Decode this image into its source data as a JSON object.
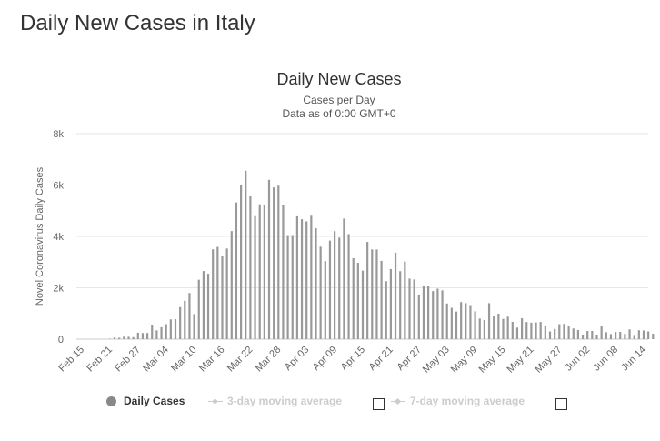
{
  "page": {
    "heading": "Daily New Cases in Italy"
  },
  "chart_data": {
    "type": "bar",
    "title": "Daily New Cases",
    "subtitle_line1": "Cases per Day",
    "subtitle_line2": "Data as of 0:00 GMT+0",
    "ylabel": "Novel Coronavirus Daily Cases",
    "xlabel": "",
    "ylim": [
      0,
      8000
    ],
    "yticks": [
      0,
      2000,
      4000,
      6000,
      8000
    ],
    "ytick_labels": [
      "0",
      "2k",
      "4k",
      "6k",
      "8k"
    ],
    "xtick_labels": [
      "Feb 15",
      "Feb 21",
      "Feb 27",
      "Mar 04",
      "Mar 10",
      "Mar 16",
      "Mar 22",
      "Mar 28",
      "Apr 03",
      "Apr 09",
      "Apr 15",
      "Apr 21",
      "Apr 27",
      "May 03",
      "May 09",
      "May 15",
      "May 21",
      "May 27",
      "Jun 02",
      "Jun 08",
      "Jun 14"
    ],
    "start_date": "2020-02-15",
    "bar_color": "#999999",
    "grid": true,
    "legend_position": "bottom",
    "series": [
      {
        "name": "Daily Cases",
        "values": [
          0,
          0,
          0,
          0,
          0,
          0,
          17,
          62,
          53,
          97,
          93,
          78,
          250,
          238,
          240,
          566,
          342,
          466,
          587,
          769,
          778,
          1247,
          1492,
          1797,
          977,
          2313,
          2651,
          2547,
          3497,
          3590,
          3233,
          3526,
          4207,
          5322,
          5986,
          6557,
          5560,
          4789,
          5249,
          5210,
          6203,
          5909,
          5974,
          5217,
          4050,
          4053,
          4782,
          4668,
          4585,
          4805,
          4316,
          3599,
          3039,
          3836,
          4204,
          3951,
          4694,
          4092,
          3153,
          2972,
          2667,
          3786,
          3493,
          3491,
          3047,
          2256,
          2729,
          3370,
          2646,
          3021,
          2357,
          2324,
          1739,
          2091,
          2086,
          1872,
          1965,
          1900,
          1389,
          1221,
          1075,
          1444,
          1401,
          1327,
          1083,
          802,
          744,
          1402,
          888,
          992,
          789,
          875,
          675,
          451,
          813,
          665,
          642,
          652,
          669,
          531,
          300,
          397,
          584,
          593,
          516,
          416,
          355,
          178,
          318,
          321,
          177,
          518,
          270,
          197,
          280,
          283,
          202,
          379,
          163,
          346,
          338,
          301,
          210
        ]
      },
      {
        "name": "3-day moving average",
        "enabled": false
      },
      {
        "name": "7-day moving average",
        "enabled": false
      }
    ]
  },
  "legend": {
    "daily_cases": "Daily Cases",
    "ma3": "3-day moving average",
    "ma7": "7-day moving average"
  },
  "colors": {
    "bar": "#999999",
    "grid": "#e6e6e6",
    "legend_disabled": "#cccccc"
  }
}
